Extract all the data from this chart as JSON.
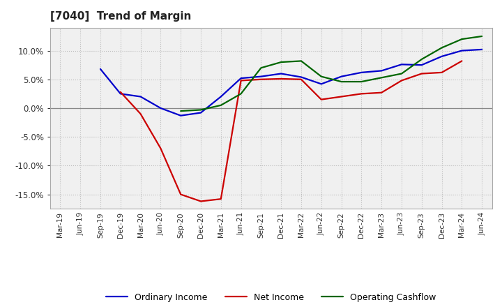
{
  "title": "[7040]  Trend of Margin",
  "title_fontsize": 11,
  "x_labels": [
    "Mar-19",
    "Jun-19",
    "Sep-19",
    "Dec-19",
    "Mar-20",
    "Jun-20",
    "Sep-20",
    "Dec-20",
    "Mar-21",
    "Jun-21",
    "Sep-21",
    "Dec-21",
    "Mar-22",
    "Jun-22",
    "Sep-22",
    "Dec-22",
    "Mar-23",
    "Jun-23",
    "Sep-23",
    "Dec-23",
    "Mar-24",
    "Jun-24"
  ],
  "ordinary_income": [
    null,
    null,
    6.8,
    2.5,
    2.0,
    0.0,
    -1.3,
    -0.8,
    2.0,
    5.2,
    5.5,
    6.0,
    5.4,
    4.2,
    5.5,
    6.2,
    6.5,
    7.6,
    7.5,
    9.0,
    10.0,
    10.2
  ],
  "net_income": [
    null,
    null,
    null,
    2.8,
    -1.0,
    -7.0,
    -15.0,
    -16.2,
    -15.8,
    4.8,
    5.0,
    5.1,
    5.0,
    1.5,
    2.0,
    2.5,
    2.7,
    4.8,
    6.0,
    6.2,
    8.2,
    null
  ],
  "operating_cashflow": [
    null,
    null,
    null,
    null,
    null,
    null,
    -0.5,
    -0.3,
    0.5,
    2.5,
    7.0,
    8.0,
    8.2,
    5.5,
    4.6,
    4.6,
    5.3,
    6.0,
    8.5,
    10.5,
    12.0,
    12.5
  ],
  "ylim": [
    -17.5,
    14.0
  ],
  "yticks": [
    -15.0,
    -10.0,
    -5.0,
    0.0,
    5.0,
    10.0
  ],
  "color_ordinary": "#0000CC",
  "color_net": "#CC0000",
  "color_cashflow": "#006600",
  "background_color": "#FFFFFF",
  "plot_bg_color": "#F0F0F0",
  "grid_color": "#BBBBBB",
  "linewidth": 1.6,
  "legend_labels": [
    "Ordinary Income",
    "Net Income",
    "Operating Cashflow"
  ]
}
